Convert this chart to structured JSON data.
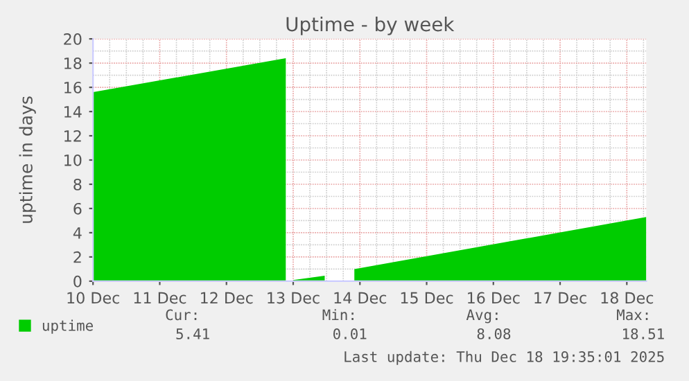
{
  "chart_data": {
    "type": "area",
    "title": "Uptime - by week",
    "ylabel": "uptime in days",
    "x": [
      "2025-12-10T00:00",
      "2025-12-12T21:20",
      "2025-12-12T22:40",
      "2025-12-13T00:00",
      "2025-12-13T11:20",
      "2025-12-13T16:00",
      "2025-12-13T22:00",
      "2025-12-18T07:00"
    ],
    "series": [
      {
        "name": "uptime",
        "color": "#00cc00",
        "values": [
          15.6,
          18.4,
          null,
          0.1,
          0.45,
          null,
          1.0,
          5.3
        ]
      }
    ],
    "xlim": [
      "2025-12-10T00:00",
      "2025-12-18T07:00"
    ],
    "xticks": [
      {
        "value": "2025-12-10",
        "label": "10 Dec"
      },
      {
        "value": "2025-12-11",
        "label": "11 Dec"
      },
      {
        "value": "2025-12-12",
        "label": "12 Dec"
      },
      {
        "value": "2025-12-13",
        "label": "13 Dec"
      },
      {
        "value": "2025-12-14",
        "label": "14 Dec"
      },
      {
        "value": "2025-12-15",
        "label": "15 Dec"
      },
      {
        "value": "2025-12-16",
        "label": "16 Dec"
      },
      {
        "value": "2025-12-17",
        "label": "17 Dec"
      },
      {
        "value": "2025-12-18",
        "label": "18 Dec"
      }
    ],
    "ylim": [
      0,
      20
    ],
    "yticks": [
      0,
      2,
      4,
      6,
      8,
      10,
      12,
      14,
      16,
      18,
      20
    ],
    "grid": true,
    "legend": "bottom left",
    "annotations": [
      "Cur:",
      "Min:",
      "Avg:",
      "Max:",
      "5.41",
      "0.01",
      "8.08",
      "18.51",
      "Last update: Thu Dec 18 19:35:01 2025"
    ]
  }
}
